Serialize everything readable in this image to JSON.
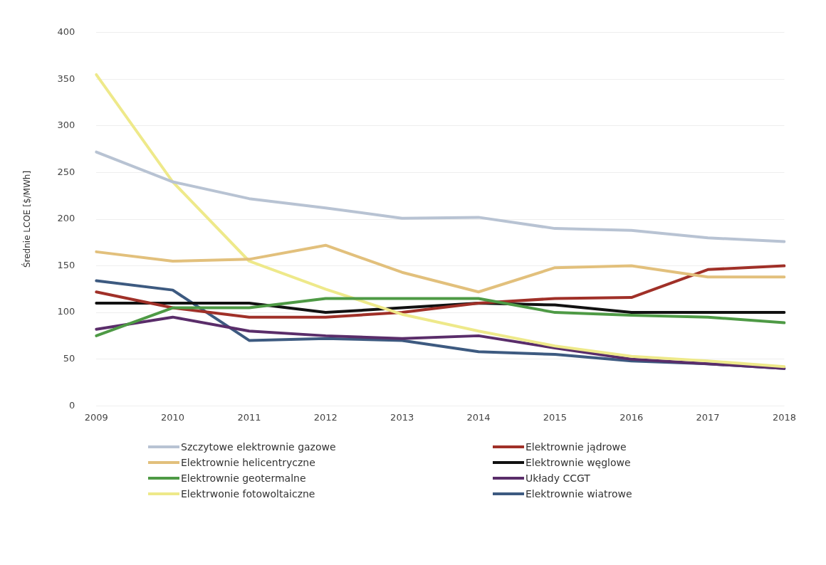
{
  "chart_data": {
    "type": "line",
    "ylabel": "Średnie LCOE [$/MWh]",
    "categories": [
      "2009",
      "2010",
      "2011",
      "2012",
      "2013",
      "2014",
      "2015",
      "2016",
      "2017",
      "2018"
    ],
    "ylim": [
      0,
      400
    ],
    "yticks": [
      0,
      50,
      100,
      150,
      200,
      250,
      300,
      350,
      400
    ],
    "grid": "y",
    "legend": "bottom",
    "marker": "none",
    "series": [
      {
        "name": "Szczytowe elektrownie gazowe",
        "color": "#b8c3d3",
        "values": [
          272,
          240,
          222,
          212,
          201,
          202,
          190,
          188,
          180,
          176
        ]
      },
      {
        "name": "Elektrownie helicentryczne",
        "color": "#e2c07c",
        "values": [
          165,
          155,
          157,
          172,
          143,
          122,
          148,
          150,
          138,
          138
        ]
      },
      {
        "name": "Elektrownie geotermalne",
        "color": "#4e9a45",
        "values": [
          75,
          105,
          105,
          115,
          115,
          115,
          100,
          97,
          95,
          89
        ]
      },
      {
        "name": "Elektrwonie fotowoltaiczne",
        "color": "#eee98a",
        "values": [
          355,
          240,
          155,
          125,
          98,
          80,
          64,
          53,
          48,
          42
        ]
      },
      {
        "name": "Elektrownie jądrowe",
        "color": "#a03028",
        "values": [
          122,
          105,
          95,
          95,
          100,
          110,
          115,
          116,
          146,
          150
        ]
      },
      {
        "name": "Elektrownie węglowe",
        "color": "#111111",
        "values": [
          110,
          110,
          110,
          100,
          105,
          110,
          108,
          100,
          100,
          100
        ]
      },
      {
        "name": "Układy CCGT",
        "color": "#5a2d6a",
        "values": [
          82,
          95,
          80,
          75,
          72,
          75,
          62,
          50,
          45,
          40
        ]
      },
      {
        "name": "Elektrownie wiatrowe",
        "color": "#3d5a80",
        "values": [
          134,
          124,
          70,
          72,
          70,
          58,
          55,
          48,
          45,
          40
        ]
      }
    ]
  }
}
